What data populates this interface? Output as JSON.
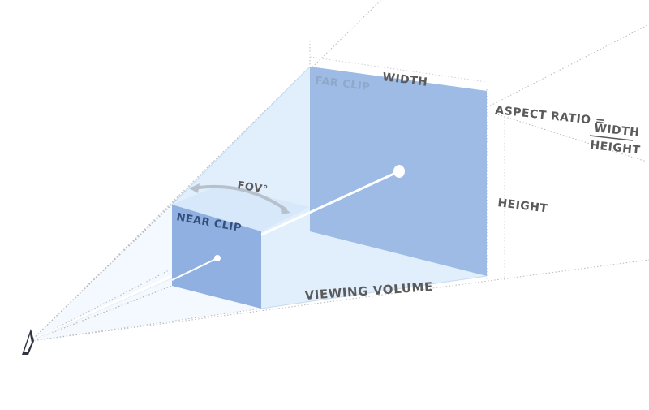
{
  "diagram": {
    "far_clip_label": "FAR CLIP",
    "near_clip_label": "NEAR CLIP",
    "width_label": "WIDTH",
    "height_label": "HEIGHT",
    "fov_label": "FOV°",
    "viewing_volume_label": "VIEWING VOLUME",
    "aspect_ratio": {
      "label": "ASPECT RATIO =",
      "numerator": "WIDTH",
      "denominator": "HEIGHT"
    }
  },
  "colors": {
    "far_plane": "#9dbbe5",
    "near_plane": "#8fb0e0",
    "volume": "#e3f0fc",
    "frustum_tint": "#eef6fe",
    "text": "#5a5a5a"
  }
}
